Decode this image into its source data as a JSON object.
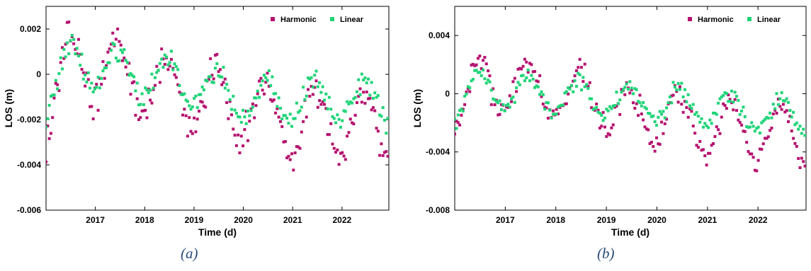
{
  "colors": {
    "harmonic": "#b5126f",
    "linear": "#1fd477"
  },
  "chart_data": [
    {
      "type": "scatter",
      "caption": "(a)",
      "xlabel": "Time (d)",
      "ylabel": "LOS (m)",
      "xlim": [
        2016.0,
        2022.95
      ],
      "ylim": [
        -0.006,
        0.003
      ],
      "xticks": [
        2017,
        2018,
        2019,
        2020,
        2021,
        2022
      ],
      "xtick_labels": [
        "2017",
        "2018",
        "2019",
        "2020",
        "2021",
        "2022"
      ],
      "yticks": [
        -0.006,
        -0.004,
        -0.002,
        0,
        0.002
      ],
      "ytick_labels": [
        "-0.006",
        "-0.004",
        "-0.002",
        "0",
        "0.002"
      ],
      "legend_position": "top-right",
      "grid": false,
      "series": [
        {
          "name": "Harmonic",
          "key": "harmonic",
          "data": []
        },
        {
          "name": "Linear",
          "key": "linear",
          "data": []
        }
      ]
    },
    {
      "type": "scatter",
      "caption": "(b)",
      "xlabel": "Time (d)",
      "ylabel": "LOS (m)",
      "xlim": [
        2016.0,
        2022.95
      ],
      "ylim": [
        -0.008,
        0.006
      ],
      "xticks": [
        2017,
        2018,
        2019,
        2020,
        2021,
        2022
      ],
      "xtick_labels": [
        "2017",
        "2018",
        "2019",
        "2020",
        "2021",
        "2022"
      ],
      "yticks": [
        -0.008,
        -0.004,
        0,
        0.004
      ],
      "ytick_labels": [
        "-0.008",
        "-0.004",
        "0",
        "0.004"
      ],
      "legend_position": "top-right",
      "grid": false,
      "series": [
        {
          "name": "Harmonic",
          "key": "harmonic",
          "data": []
        },
        {
          "name": "Linear",
          "key": "linear",
          "data": []
        }
      ]
    }
  ]
}
